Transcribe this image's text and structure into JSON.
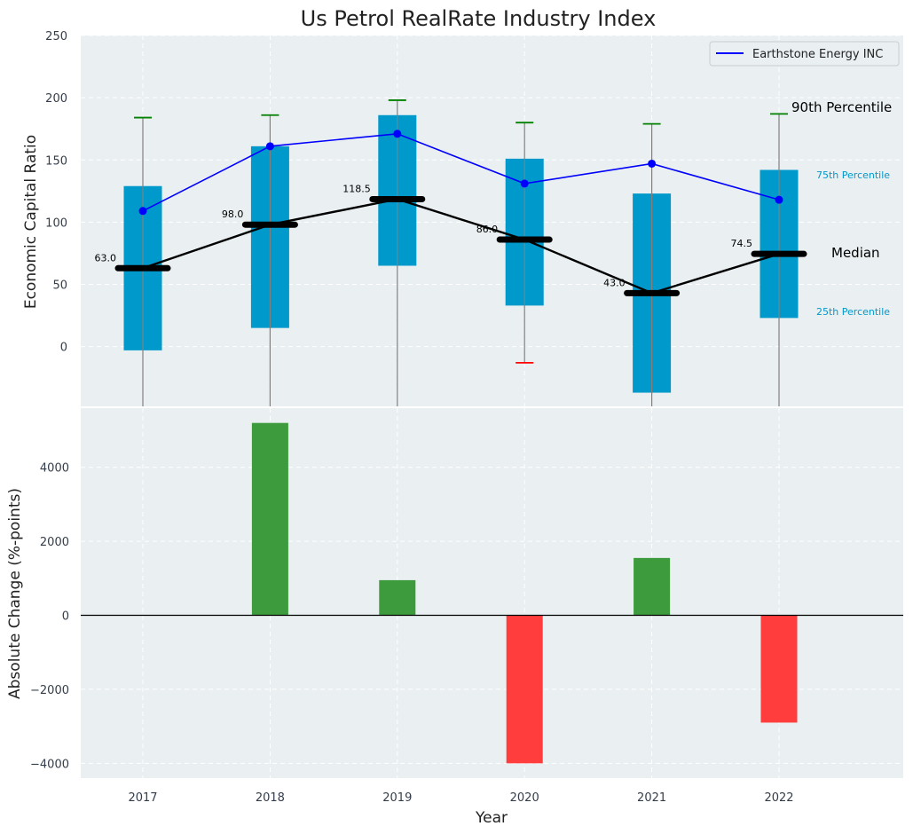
{
  "chart_data": {
    "type": "boxplot-with-bars",
    "title": "Us Petrol RealRate Industry Index",
    "xlabel": "Year",
    "years": [
      "2017",
      "2018",
      "2019",
      "2020",
      "2021",
      "2022"
    ],
    "top_panel": {
      "ylabel": "Economic Capital Ratio",
      "ylim": [
        -48,
        250
      ],
      "yticks": [
        0,
        50,
        100,
        150,
        200,
        250
      ],
      "p25": [
        -3,
        15,
        65,
        33,
        -37,
        23
      ],
      "p75": [
        129,
        161,
        186,
        151,
        123,
        142
      ],
      "p90": [
        184,
        186,
        198,
        180,
        179,
        187
      ],
      "p10": [
        null,
        null,
        null,
        -13,
        null,
        null
      ],
      "median": [
        63.0,
        98.0,
        118.5,
        86.0,
        43.0,
        74.5
      ],
      "median_labels": [
        "63.0",
        "98.0",
        "118.5",
        "86.0",
        "43.0",
        "74.5"
      ],
      "company_series": {
        "name": "Earthstone Energy INC",
        "values": [
          109,
          161,
          171,
          131,
          147,
          118
        ]
      },
      "annotations": {
        "p90": "90th Percentile",
        "p75": "75th Percentile",
        "median": "Median",
        "p25": "25th Percentile"
      }
    },
    "bottom_panel": {
      "ylabel": "Absolute Change (%-points)",
      "ylim": [
        -4400,
        5600
      ],
      "yticks": [
        -4000,
        -2000,
        0,
        2000,
        4000
      ],
      "ytick_labels": [
        "−4000",
        "−2000",
        "0",
        "2000",
        "4000"
      ],
      "values": [
        null,
        5200,
        950,
        -4000,
        1550,
        -2900
      ]
    },
    "colors": {
      "box": "#0099cc",
      "company_line": "#0000ff",
      "median": "#000000",
      "whisker_top": "#008000",
      "whisker_bottom": "#ff0000",
      "positive_bar": "#3d9b3d",
      "negative_bar": "#ff3d3d",
      "panel_bg": "#eaeff1",
      "annotation_blue": "#0099cc"
    }
  }
}
